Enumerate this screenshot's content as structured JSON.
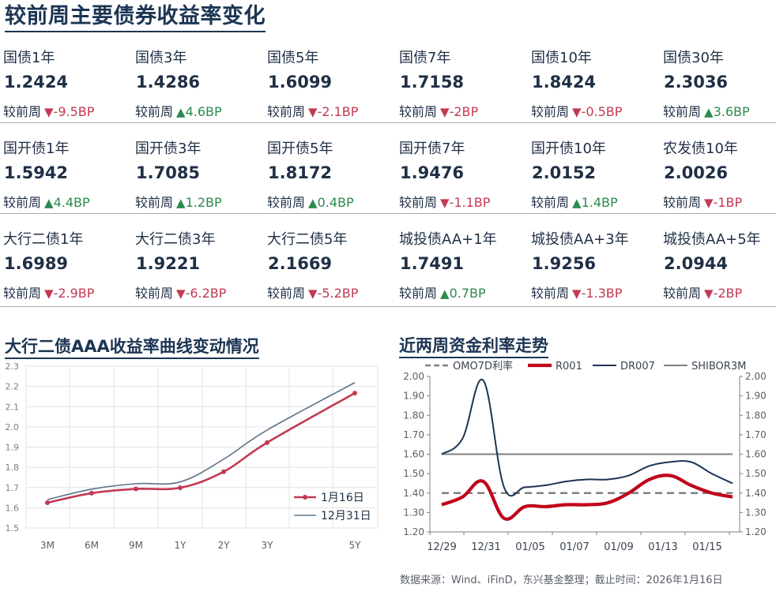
{
  "title": "较前周主要债券收益率变化",
  "change_label": "较前周",
  "bond_rows": [
    [
      {
        "name": "国债1年",
        "value": "1.2424",
        "direction": "down",
        "change": "-9.5BP"
      },
      {
        "name": "国债3年",
        "value": "1.4286",
        "direction": "up",
        "change": "4.6BP"
      },
      {
        "name": "国债5年",
        "value": "1.6099",
        "direction": "down",
        "change": "-2.1BP"
      },
      {
        "name": "国债7年",
        "value": "1.7158",
        "direction": "down",
        "change": "-2BP"
      },
      {
        "name": "国债10年",
        "value": "1.8424",
        "direction": "down",
        "change": "-0.5BP"
      },
      {
        "name": "国债30年",
        "value": "2.3036",
        "direction": "up",
        "change": "3.6BP"
      }
    ],
    [
      {
        "name": "国开债1年",
        "value": "1.5942",
        "direction": "up",
        "change": "4.4BP"
      },
      {
        "name": "国开债3年",
        "value": "1.7085",
        "direction": "up",
        "change": "1.2BP"
      },
      {
        "name": "国开债5年",
        "value": "1.8172",
        "direction": "up",
        "change": "0.4BP"
      },
      {
        "name": "国开债7年",
        "value": "1.9476",
        "direction": "down",
        "change": "-1.1BP"
      },
      {
        "name": "国开债10年",
        "value": "2.0152",
        "direction": "up",
        "change": "1.4BP"
      },
      {
        "name": "农发债10年",
        "value": "2.0026",
        "direction": "down",
        "change": "-1BP"
      }
    ],
    [
      {
        "name": "大行二债1年",
        "value": "1.6989",
        "direction": "down",
        "change": "-2.9BP"
      },
      {
        "name": "大行二债3年",
        "value": "1.9221",
        "direction": "down",
        "change": "-6.2BP"
      },
      {
        "name": "大行二债5年",
        "value": "2.1669",
        "direction": "down",
        "change": "-5.2BP"
      },
      {
        "name": "城投债AA+1年",
        "value": "1.7491",
        "direction": "up",
        "change": "0.7BP"
      },
      {
        "name": "城投债AA+3年",
        "value": "1.9256",
        "direction": "down",
        "change": "-1.3BP"
      },
      {
        "name": "城投债AA+5年",
        "value": "2.0944",
        "direction": "down",
        "change": "-2BP"
      }
    ]
  ],
  "colors": {
    "down": "#c23a52",
    "up": "#2c8a4f",
    "navy": "#1c3553"
  },
  "chart_data": [
    {
      "type": "line",
      "title": "大行二债AAA收益率曲线变动情况",
      "x": [
        "3M",
        "6M",
        "9M",
        "1Y",
        "2Y",
        "3Y",
        "5Y"
      ],
      "x_pos": [
        0.25,
        0.5,
        0.75,
        1,
        2,
        3,
        5
      ],
      "ylim": [
        1.5,
        2.3
      ],
      "yticks": [
        "1.5",
        "1.6",
        "1.7",
        "1.8",
        "1.9",
        "2.0",
        "2.1",
        "2.2",
        "2.3"
      ],
      "grid": true,
      "legend_position": "bottom-right",
      "series": [
        {
          "name": "1月16日",
          "color": "#c23a52",
          "markers": true,
          "values": [
            1.625,
            1.672,
            1.693,
            1.699,
            1.778,
            1.922,
            2.167
          ]
        },
        {
          "name": "12月31日",
          "color": "#5d7388",
          "markers": false,
          "values": [
            1.64,
            1.692,
            1.719,
            1.728,
            1.84,
            1.984,
            2.219
          ]
        }
      ]
    },
    {
      "type": "line",
      "title": "近两周资金利率走势",
      "x_ticks": [
        "12/29",
        "12/31",
        "01/05",
        "01/07",
        "01/09",
        "01/13",
        "01/15"
      ],
      "ylim": [
        1.2,
        2.0
      ],
      "yticks": [
        "1.20",
        "1.30",
        "1.40",
        "1.50",
        "1.60",
        "1.70",
        "1.80",
        "1.90",
        "2.00"
      ],
      "legend_position": "top",
      "series": [
        {
          "name": "OMO7D利率",
          "color": "#7f7f7f",
          "dashed": true,
          "values": [
            1.4,
            1.4,
            1.4,
            1.4,
            1.4,
            1.4,
            1.4,
            1.4,
            1.4,
            1.4,
            1.4,
            1.4,
            1.4,
            1.4,
            1.4
          ]
        },
        {
          "name": "R001",
          "color": "#c0001a",
          "values": [
            1.34,
            1.38,
            1.46,
            1.27,
            1.33,
            1.33,
            1.34,
            1.34,
            1.35,
            1.4,
            1.47,
            1.49,
            1.44,
            1.4,
            1.38
          ]
        },
        {
          "name": "DR007",
          "color": "#1c3553",
          "values": [
            1.6,
            1.68,
            1.98,
            1.43,
            1.43,
            1.44,
            1.46,
            1.47,
            1.47,
            1.49,
            1.54,
            1.56,
            1.56,
            1.5,
            1.45
          ]
        },
        {
          "name": "SHIBOR3M",
          "color": "#7f7f7f",
          "values": [
            1.6,
            1.6,
            1.6,
            1.6,
            1.6,
            1.6,
            1.6,
            1.6,
            1.6,
            1.6,
            1.6,
            1.6,
            1.6,
            1.6,
            1.6
          ]
        }
      ]
    }
  ],
  "source": "数据来源：Wind、iFinD，东兴基金整理；截止时间：2026年1月16日"
}
